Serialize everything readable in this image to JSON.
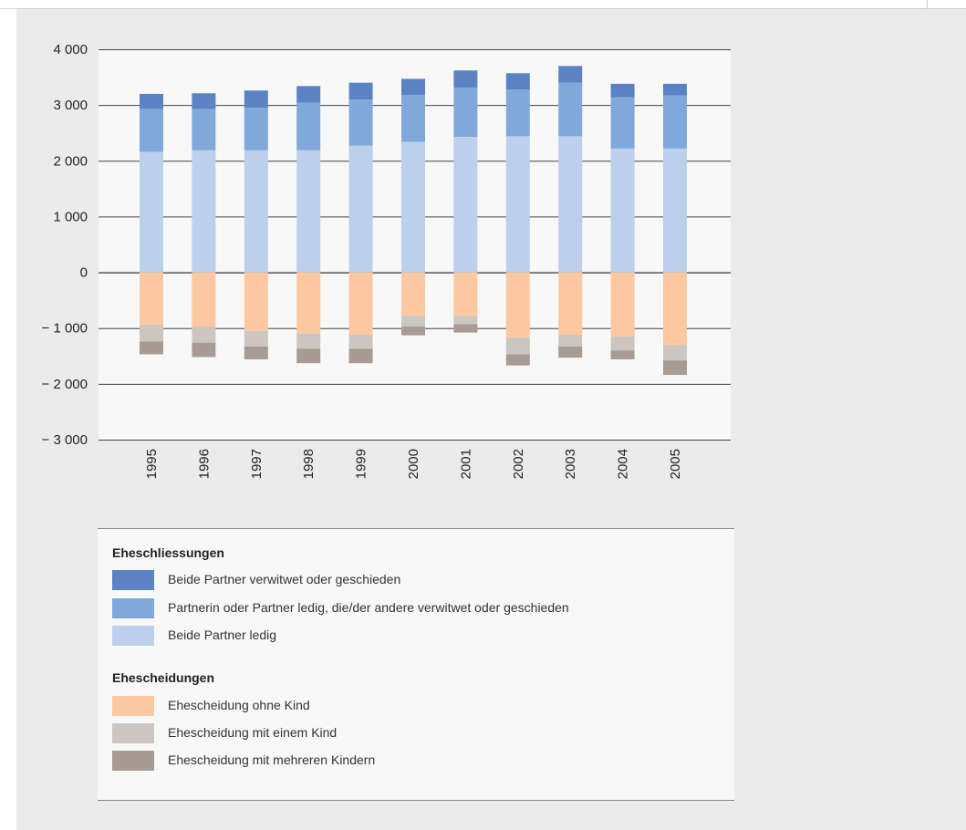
{
  "chart_data": {
    "type": "bar",
    "stacked": true,
    "categories": [
      "1995",
      "1996",
      "1997",
      "1998",
      "1999",
      "2000",
      "2001",
      "2002",
      "2003",
      "2004",
      "2005"
    ],
    "ylim": [
      -3000,
      4000
    ],
    "yticks": [
      4000,
      3000,
      2000,
      1000,
      0,
      -1000,
      -2000,
      -3000
    ],
    "ytick_labels": [
      "4 000",
      "3 000",
      "2 000",
      "1 000",
      "0",
      "− 1 000",
      "− 2 000",
      "− 3 000"
    ],
    "grid": true,
    "series": [
      {
        "name": "Beide Partner ledig",
        "group": "Eheschliessungen",
        "color": "#bcd0ec",
        "values": [
          2160,
          2190,
          2190,
          2190,
          2270,
          2340,
          2430,
          2440,
          2440,
          2220,
          2220
        ]
      },
      {
        "name": "Partnerin oder Partner ledig, die/der andere verwitwet oder geschieden",
        "group": "Eheschliessungen",
        "color": "#80a8db",
        "values": [
          770,
          740,
          760,
          850,
          830,
          840,
          880,
          840,
          960,
          920,
          950
        ]
      },
      {
        "name": "Beide Partner verwitwet oder geschieden",
        "group": "Eheschliessungen",
        "color": "#5b83c4",
        "values": [
          270,
          280,
          310,
          300,
          300,
          290,
          310,
          290,
          300,
          240,
          210
        ]
      },
      {
        "name": "Ehescheidung ohne Kind",
        "group": "Ehescheidungen",
        "color": "#fbc8a1",
        "values": [
          -940,
          -980,
          -1050,
          -1100,
          -1120,
          -780,
          -780,
          -1170,
          -1120,
          -1150,
          -1300
        ]
      },
      {
        "name": "Ehescheidung mit einem Kind",
        "group": "Ehescheidungen",
        "color": "#cbc7c0",
        "values": [
          -300,
          -280,
          -280,
          -270,
          -250,
          -190,
          -150,
          -300,
          -210,
          -250,
          -280
        ]
      },
      {
        "name": "Ehescheidung mit mehreren Kindern",
        "group": "Ehescheidungen",
        "color": "#a89b94",
        "values": [
          -230,
          -260,
          -230,
          -260,
          -260,
          -160,
          -150,
          -200,
          -200,
          -160,
          -260
        ]
      }
    ]
  },
  "legend": {
    "groups": [
      {
        "heading": "Eheschliessungen",
        "items": [
          {
            "label": "Beide Partner verwitwet oder geschieden",
            "color": "#5b83c4"
          },
          {
            "label": "Partnerin oder Partner ledig, die/der andere verwitwet oder geschieden",
            "color": "#80a8db"
          },
          {
            "label": "Beide Partner ledig",
            "color": "#bcd0ec"
          }
        ]
      },
      {
        "heading": "Ehescheidungen",
        "items": [
          {
            "label": "Ehescheidung ohne Kind",
            "color": "#fbc8a1"
          },
          {
            "label": "Ehescheidung mit einem Kind",
            "color": "#cbc7c0"
          },
          {
            "label": "Ehescheidung mit mehreren Kindern",
            "color": "#a89b94"
          }
        ]
      }
    ]
  }
}
